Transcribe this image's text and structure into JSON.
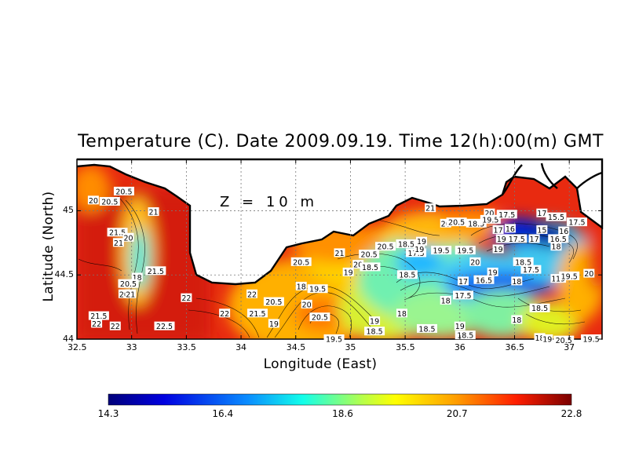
{
  "title": "Temperature (C). Date 2009.09.19. Time 12(h):00(m) GMT",
  "depth_label": "Z = 10 m",
  "x_axis": {
    "label": "Longitude (East)",
    "ticks": [
      "32.5",
      "33",
      "33.5",
      "34",
      "34.5",
      "35",
      "35.5",
      "36",
      "36.5",
      "37"
    ],
    "range": [
      32.5,
      37.3
    ]
  },
  "y_axis": {
    "label": "Latitude (North)",
    "ticks": [
      "45",
      "44.5",
      "44"
    ],
    "range": [
      44.0,
      45.4
    ]
  },
  "colorbar": {
    "ticks": [
      "14.3",
      "16.4",
      "18.6",
      "20.7",
      "22.8"
    ],
    "min": 14.3,
    "max": 22.8
  },
  "contour_labels": [
    {
      "v": "20.5",
      "lon": 32.93,
      "lat": 45.15
    },
    {
      "v": "20",
      "lon": 32.65,
      "lat": 45.08
    },
    {
      "v": "20.5",
      "lon": 32.8,
      "lat": 45.07
    },
    {
      "v": "21",
      "lon": 33.2,
      "lat": 44.99
    },
    {
      "v": "21.5",
      "lon": 32.87,
      "lat": 44.83
    },
    {
      "v": "20",
      "lon": 32.97,
      "lat": 44.79
    },
    {
      "v": "21",
      "lon": 32.88,
      "lat": 44.75
    },
    {
      "v": "18",
      "lon": 33.05,
      "lat": 44.48
    },
    {
      "v": "21.5",
      "lon": 33.22,
      "lat": 44.53
    },
    {
      "v": "20.5",
      "lon": 32.97,
      "lat": 44.43
    },
    {
      "v": "20",
      "lon": 32.93,
      "lat": 44.35
    },
    {
      "v": "21",
      "lon": 32.99,
      "lat": 44.35
    },
    {
      "v": "22",
      "lon": 33.5,
      "lat": 44.32
    },
    {
      "v": "22",
      "lon": 34.1,
      "lat": 44.35
    },
    {
      "v": "20.5",
      "lon": 34.3,
      "lat": 44.29
    },
    {
      "v": "22",
      "lon": 33.85,
      "lat": 44.2
    },
    {
      "v": "21.5",
      "lon": 34.15,
      "lat": 44.2
    },
    {
      "v": "22",
      "lon": 32.85,
      "lat": 44.1
    },
    {
      "v": "22.5",
      "lon": 33.3,
      "lat": 44.1
    },
    {
      "v": "21.5",
      "lon": 32.7,
      "lat": 44.18
    },
    {
      "v": "22",
      "lon": 32.68,
      "lat": 44.12
    },
    {
      "v": "19",
      "lon": 34.3,
      "lat": 44.12
    },
    {
      "v": "18",
      "lon": 34.55,
      "lat": 44.41
    },
    {
      "v": "19.5",
      "lon": 34.7,
      "lat": 44.39
    },
    {
      "v": "20",
      "lon": 34.6,
      "lat": 44.27
    },
    {
      "v": "20.5",
      "lon": 34.72,
      "lat": 44.17
    },
    {
      "v": "21",
      "lon": 34.9,
      "lat": 44.67
    },
    {
      "v": "20.5",
      "lon": 34.55,
      "lat": 44.6
    },
    {
      "v": "19",
      "lon": 34.98,
      "lat": 44.52
    },
    {
      "v": "20",
      "lon": 35.07,
      "lat": 44.58
    },
    {
      "v": "18.5",
      "lon": 35.18,
      "lat": 44.56
    },
    {
      "v": "20.5",
      "lon": 35.32,
      "lat": 44.72
    },
    {
      "v": "20.5",
      "lon": 35.17,
      "lat": 44.66
    },
    {
      "v": "18.5",
      "lon": 35.51,
      "lat": 44.74
    },
    {
      "v": "19",
      "lon": 35.65,
      "lat": 44.76
    },
    {
      "v": "17.5",
      "lon": 35.6,
      "lat": 44.67
    },
    {
      "v": "19",
      "lon": 35.63,
      "lat": 44.7
    },
    {
      "v": "19.5",
      "lon": 35.83,
      "lat": 44.69
    },
    {
      "v": "19.5",
      "lon": 36.05,
      "lat": 44.69
    },
    {
      "v": "18.5",
      "lon": 35.52,
      "lat": 44.5
    },
    {
      "v": "19",
      "lon": 35.22,
      "lat": 44.14
    },
    {
      "v": "18.5",
      "lon": 35.22,
      "lat": 44.06
    },
    {
      "v": "19.5",
      "lon": 34.85,
      "lat": 44.0
    },
    {
      "v": "18",
      "lon": 35.47,
      "lat": 44.2
    },
    {
      "v": "18.5",
      "lon": 35.7,
      "lat": 44.08
    },
    {
      "v": "18",
      "lon": 35.87,
      "lat": 44.3
    },
    {
      "v": "17",
      "lon": 36.03,
      "lat": 44.45
    },
    {
      "v": "16.5",
      "lon": 36.22,
      "lat": 44.46
    },
    {
      "v": "17.5",
      "lon": 36.03,
      "lat": 44.34
    },
    {
      "v": "19",
      "lon": 36.0,
      "lat": 44.1
    },
    {
      "v": "18.5",
      "lon": 36.05,
      "lat": 44.03
    },
    {
      "v": "20",
      "lon": 36.14,
      "lat": 44.6
    },
    {
      "v": "19",
      "lon": 36.3,
      "lat": 44.52
    },
    {
      "v": "18",
      "lon": 36.52,
      "lat": 44.45
    },
    {
      "v": "18.5",
      "lon": 36.58,
      "lat": 44.6
    },
    {
      "v": "17.5",
      "lon": 36.65,
      "lat": 44.54
    },
    {
      "v": "18",
      "lon": 36.52,
      "lat": 44.15
    },
    {
      "v": "18.5",
      "lon": 36.73,
      "lat": 44.24
    },
    {
      "v": "18",
      "lon": 36.73,
      "lat": 44.01
    },
    {
      "v": "19",
      "lon": 36.8,
      "lat": 44.0
    },
    {
      "v": "18",
      "lon": 36.88,
      "lat": 44.47
    },
    {
      "v": "19",
      "lon": 36.92,
      "lat": 44.47
    },
    {
      "v": "19.5",
      "lon": 37.0,
      "lat": 44.49
    },
    {
      "v": "20",
      "lon": 37.18,
      "lat": 44.51
    },
    {
      "v": "20.5",
      "lon": 36.95,
      "lat": 43.99
    },
    {
      "v": "19.5",
      "lon": 37.2,
      "lat": 44.0
    },
    {
      "v": "21",
      "lon": 35.73,
      "lat": 45.02
    },
    {
      "v": "20",
      "lon": 35.87,
      "lat": 44.9
    },
    {
      "v": "20.5",
      "lon": 35.97,
      "lat": 44.91
    },
    {
      "v": "18.5",
      "lon": 36.15,
      "lat": 44.9
    },
    {
      "v": "20",
      "lon": 36.27,
      "lat": 44.98
    },
    {
      "v": "19.5",
      "lon": 36.28,
      "lat": 44.93
    },
    {
      "v": "17.5",
      "lon": 36.43,
      "lat": 44.97
    },
    {
      "v": "17",
      "lon": 36.75,
      "lat": 44.98
    },
    {
      "v": "15.5",
      "lon": 36.88,
      "lat": 44.95
    },
    {
      "v": "17.5",
      "lon": 37.07,
      "lat": 44.91
    },
    {
      "v": "17",
      "lon": 36.35,
      "lat": 44.85
    },
    {
      "v": "16",
      "lon": 36.46,
      "lat": 44.86
    },
    {
      "v": "15",
      "lon": 36.75,
      "lat": 44.85
    },
    {
      "v": "16",
      "lon": 36.95,
      "lat": 44.84
    },
    {
      "v": "17.5",
      "lon": 36.52,
      "lat": 44.78
    },
    {
      "v": "17",
      "lon": 36.68,
      "lat": 44.78
    },
    {
      "v": "16.5",
      "lon": 36.9,
      "lat": 44.78
    },
    {
      "v": "18",
      "lon": 36.88,
      "lat": 44.72
    },
    {
      "v": "19",
      "lon": 36.38,
      "lat": 44.78
    },
    {
      "v": "19",
      "lon": 36.35,
      "lat": 44.7
    }
  ]
}
